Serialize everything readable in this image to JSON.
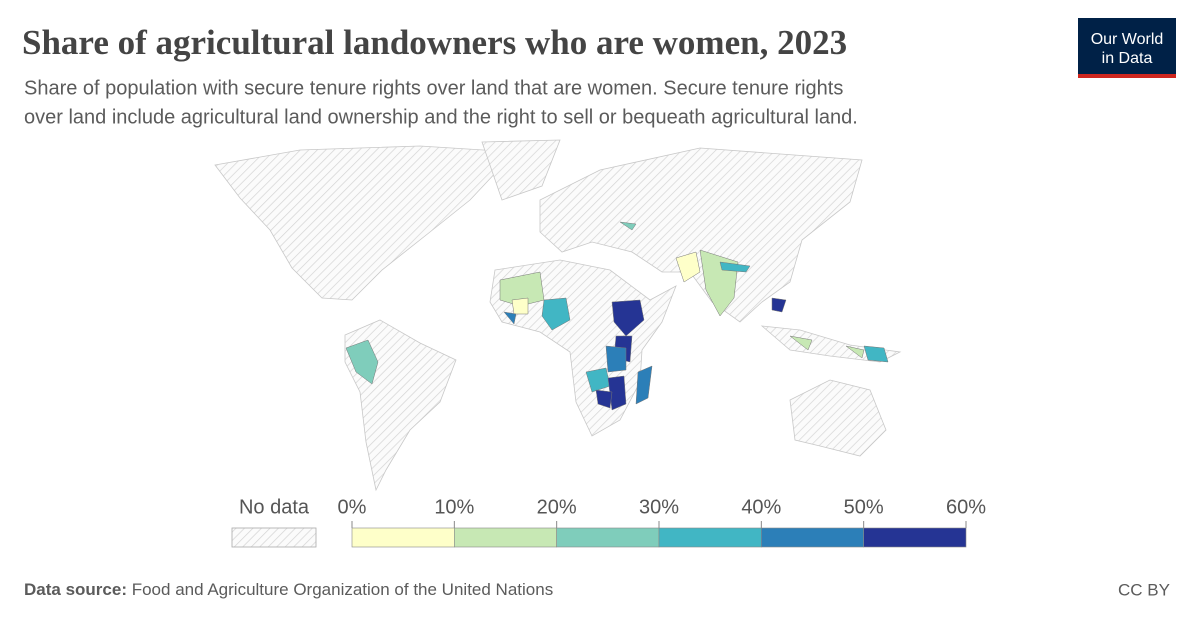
{
  "header": {
    "title": "Share of agricultural landowners who are women, 2023",
    "subtitle": [
      "Share of population with secure tenure rights over land that are women. Secure tenure rights",
      "over land include agricultural land ownership and the right to sell or bequeath agricultural land."
    ]
  },
  "logo": [
    "Our World",
    "in Data"
  ],
  "chart_data": {
    "type": "choropleth",
    "legend": {
      "no_data_label": "No data",
      "xlim": [
        0,
        60
      ],
      "ticks": [
        {
          "value": 0,
          "label": "0%"
        },
        {
          "value": 10,
          "label": "10%"
        },
        {
          "value": 20,
          "label": "20%"
        },
        {
          "value": 30,
          "label": "30%"
        },
        {
          "value": 40,
          "label": "40%"
        },
        {
          "value": 50,
          "label": "50%"
        },
        {
          "value": 60,
          "label": "60%"
        }
      ],
      "colors": [
        "#feffc9",
        "#c7e8b4",
        "#7fcdbb",
        "#41b6c4",
        "#2c7fb8",
        "#253494"
      ]
    }
  },
  "footer": {
    "source_label": "Data source:",
    "source": "Food and Agriculture Organization of the United Nations",
    "license": "CC BY"
  }
}
